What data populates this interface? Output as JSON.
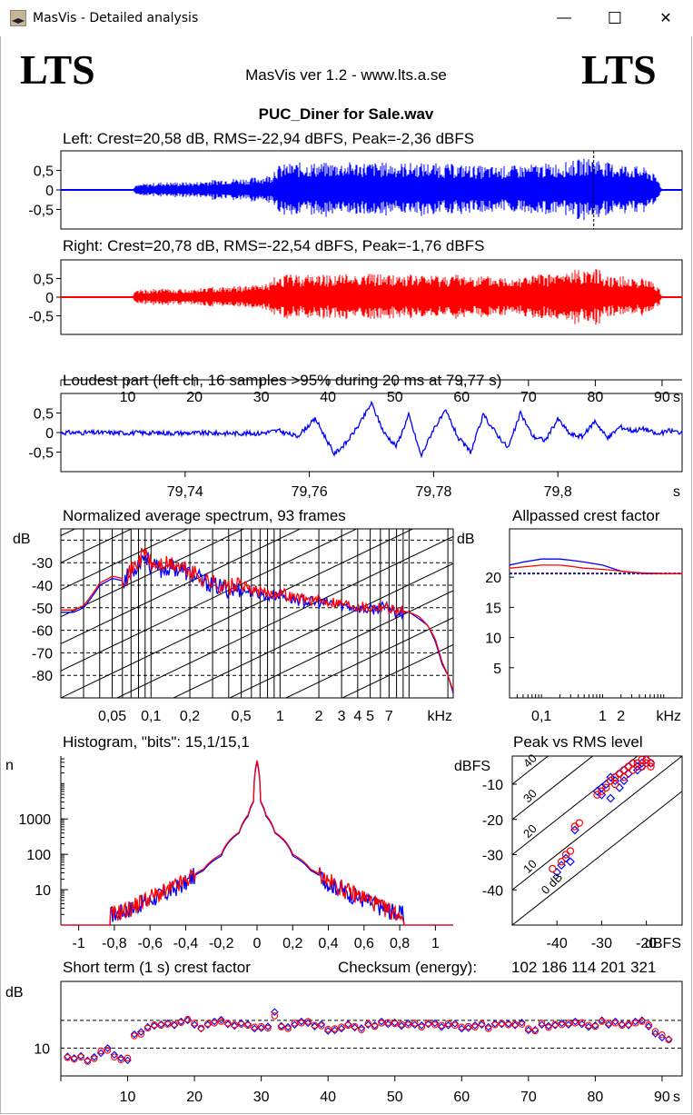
{
  "window": {
    "title": "MasVis - Detailed analysis",
    "minimize": "—",
    "maximize": "☐",
    "close": "✕"
  },
  "header": {
    "logo_left": "LTS",
    "logo_right": "LTS",
    "version": "MasVis ver 1.2 - www.lts.a.se",
    "filename": "PUC_Diner for Sale.wav"
  },
  "colors": {
    "left": "#0000ff",
    "right": "#ff0000",
    "grid": "#000000"
  },
  "chart_data": [
    {
      "id": "left",
      "type": "line",
      "title": "Left: Crest=20,58 dB, RMS=-22,94 dBFS, Peak=-2,36 dBFS",
      "xlim": [
        0,
        93
      ],
      "ylim": [
        -1,
        1
      ],
      "ytick_labels": [
        "0,5",
        "0",
        "-0,5"
      ],
      "yticks": [
        0.5,
        0,
        -0.5
      ],
      "marker_x": 79.77,
      "envelope_x": [
        0,
        10.8,
        11,
        12,
        15,
        18,
        20,
        22,
        25,
        28,
        30,
        31.5,
        32,
        33,
        35,
        40,
        45,
        50,
        55,
        60,
        65,
        70,
        75,
        78,
        80,
        82,
        85,
        88,
        89.5,
        90,
        93
      ],
      "envelope_y": [
        0.01,
        0.01,
        0.1,
        0.15,
        0.2,
        0.2,
        0.2,
        0.25,
        0.3,
        0.3,
        0.35,
        0.4,
        0.6,
        0.65,
        0.7,
        0.7,
        0.72,
        0.7,
        0.7,
        0.65,
        0.6,
        0.65,
        0.7,
        0.8,
        0.85,
        0.7,
        0.65,
        0.55,
        0.25,
        0.01,
        0.01
      ]
    },
    {
      "id": "right",
      "type": "line",
      "title": "Right: Crest=20,78 dB, RMS=-22,54 dBFS, Peak=-1,76 dBFS",
      "xlim": [
        0,
        93
      ],
      "ylim": [
        -1,
        1
      ],
      "ytick_labels": [
        "0,5",
        "0",
        "-0,5"
      ],
      "yticks": [
        0.5,
        0,
        -0.5
      ],
      "xticks": [
        10,
        20,
        30,
        40,
        50,
        60,
        70,
        80,
        90
      ],
      "xtick_labels": [
        "10",
        "20",
        "30",
        "40",
        "50",
        "60",
        "70",
        "80",
        "90"
      ],
      "xunit": "s",
      "envelope_x": [
        0,
        10.8,
        11,
        12,
        15,
        18,
        20,
        22,
        25,
        28,
        30,
        31.5,
        32,
        33,
        35,
        40,
        45,
        50,
        55,
        60,
        65,
        70,
        75,
        78,
        80,
        82,
        85,
        88,
        89.5,
        90,
        93
      ],
      "envelope_y": [
        0.01,
        0.01,
        0.15,
        0.2,
        0.22,
        0.22,
        0.22,
        0.27,
        0.3,
        0.3,
        0.35,
        0.4,
        0.55,
        0.6,
        0.62,
        0.62,
        0.65,
        0.62,
        0.6,
        0.62,
        0.55,
        0.6,
        0.65,
        0.78,
        0.8,
        0.6,
        0.55,
        0.5,
        0.3,
        0.01,
        0.01
      ]
    },
    {
      "id": "loudest",
      "type": "line",
      "title": "Loudest part (left  ch, 16 samples >95% during 20 ms at 79,77 s)",
      "xlim": [
        79.72,
        79.82
      ],
      "ylim": [
        -1,
        1
      ],
      "yticks": [
        0.5,
        0,
        -0.5
      ],
      "ytick_labels": [
        "0,5",
        "0",
        "-0,5"
      ],
      "xticks": [
        79.74,
        79.76,
        79.78,
        79.8
      ],
      "xtick_labels": [
        "79,74",
        "79,76",
        "79,78",
        "79,8"
      ],
      "xunit": "s",
      "x": [
        79.72,
        79.752,
        79.755,
        79.758,
        79.761,
        79.764,
        79.766,
        79.768,
        79.77,
        79.772,
        79.774,
        79.776,
        79.778,
        79.78,
        79.782,
        79.784,
        79.786,
        79.788,
        79.79,
        79.792,
        79.794,
        79.796,
        79.798,
        79.8,
        79.802,
        79.804,
        79.806,
        79.808,
        79.81,
        79.812,
        79.814,
        79.816,
        79.818,
        79.82
      ],
      "y": [
        0.0,
        -0.02,
        0.05,
        -0.1,
        0.35,
        -0.55,
        -0.25,
        0.2,
        0.75,
        0.0,
        -0.35,
        0.45,
        -0.6,
        0.1,
        0.55,
        -0.15,
        -0.5,
        0.45,
        0.0,
        -0.4,
        0.5,
        -0.1,
        -0.2,
        0.35,
        -0.05,
        -0.1,
        0.3,
        -0.15,
        0.15,
        0.05,
        0.1,
        -0.05,
        0.05,
        0.0
      ]
    },
    {
      "id": "spectrum",
      "type": "line",
      "title": "Normalized average spectrum, 93 frames",
      "ylabel": "dB",
      "yticks": [
        -30,
        -40,
        -50,
        -60,
        -70,
        -80
      ],
      "ytick_labels": [
        "-30",
        "-40",
        "-50",
        "-60",
        "-70",
        "-80"
      ],
      "ylim": [
        -90,
        -15
      ],
      "xscale": "log",
      "xlim": [
        0.02,
        22
      ],
      "xticks": [
        0.05,
        0.1,
        0.2,
        0.5,
        1,
        2,
        3,
        4,
        5,
        7
      ],
      "xtick_labels": [
        "0,05",
        "0,1",
        "0,2",
        "0,5",
        "1",
        "2",
        "3",
        "4",
        "5",
        "7"
      ],
      "xunit": "kHz",
      "x": [
        0.02,
        0.025,
        0.03,
        0.035,
        0.04,
        0.05,
        0.06,
        0.07,
        0.08,
        0.09,
        0.1,
        0.12,
        0.15,
        0.2,
        0.25,
        0.3,
        0.4,
        0.5,
        0.6,
        0.8,
        1,
        1.2,
        1.5,
        2,
        2.5,
        3,
        4,
        5,
        6,
        7,
        8,
        10,
        12,
        14,
        16,
        18,
        20,
        22
      ],
      "left": [
        -52,
        -52,
        -50,
        -45,
        -40,
        -37,
        -38,
        -35,
        -30,
        -26,
        -32,
        -33,
        -32,
        -35,
        -38,
        -40,
        -42,
        -42,
        -43,
        -45,
        -44,
        -46,
        -47,
        -48,
        -48,
        -49,
        -50,
        -51,
        -50,
        -50,
        -52,
        -52,
        -55,
        -58,
        -65,
        -75,
        -80,
        -88
      ],
      "right": [
        -51,
        -51,
        -49,
        -44,
        -39,
        -36,
        -37,
        -34,
        -29,
        -25,
        -31,
        -31,
        -31,
        -34,
        -37,
        -39,
        -41,
        -40,
        -42,
        -44,
        -43,
        -45,
        -46,
        -47,
        -47,
        -48,
        -49,
        -50,
        -49,
        -50,
        -51,
        -52,
        -54,
        -58,
        -64,
        -74,
        -80,
        -87
      ]
    },
    {
      "id": "allpass",
      "type": "line",
      "title": "Allpassed crest factor",
      "ylabel": "dB",
      "yticks": [
        20,
        15,
        10,
        5
      ],
      "ytick_labels": [
        "20",
        "15",
        "10",
        "5"
      ],
      "ylim": [
        0,
        28
      ],
      "xscale": "log",
      "xlim": [
        0.03,
        20
      ],
      "xticks": [
        0.1,
        1,
        2
      ],
      "xtick_labels": [
        "0,1",
        "1",
        "2"
      ],
      "xunit": "kHz",
      "x": [
        0.03,
        0.05,
        0.1,
        0.2,
        0.3,
        0.5,
        1,
        2,
        3,
        5,
        10,
        20
      ],
      "left": [
        22,
        22.5,
        23,
        23,
        22.8,
        22.5,
        22,
        21,
        20.8,
        20.6,
        20.6,
        20.6
      ],
      "right": [
        21.5,
        21.7,
        22,
        22,
        21.8,
        21.5,
        21.3,
        21,
        20.8,
        20.7,
        20.6,
        20.6
      ],
      "reference": 20.6
    },
    {
      "id": "histogram",
      "type": "line",
      "title": "Histogram, \"bits\": 15,1/15,1",
      "ylabel": "n",
      "yscale": "log",
      "ylim": [
        1,
        60000
      ],
      "yticks": [
        1000,
        100,
        10
      ],
      "ytick_labels": [
        "1000",
        "100",
        "10"
      ],
      "xlim": [
        -1.1,
        1.1
      ],
      "xticks": [
        -1,
        -0.8,
        -0.6,
        -0.4,
        -0.2,
        0,
        0.2,
        0.4,
        0.6,
        0.8,
        1
      ],
      "xtick_labels": [
        "-1",
        "-0,8",
        "-0,6",
        "-0,4",
        "-0,2",
        "0",
        "0,2",
        "0,4",
        "0,6",
        "0,8",
        "1"
      ],
      "x": [
        -0.8,
        -0.7,
        -0.6,
        -0.5,
        -0.4,
        -0.3,
        -0.2,
        -0.1,
        -0.05,
        -0.02,
        0,
        0.02,
        0.05,
        0.1,
        0.2,
        0.3,
        0.4,
        0.5,
        0.6,
        0.7,
        0.8
      ],
      "left": [
        2,
        3,
        5,
        8,
        15,
        35,
        90,
        400,
        1200,
        3000,
        40000,
        3000,
        1200,
        400,
        90,
        35,
        15,
        8,
        5,
        3,
        2
      ],
      "right": [
        2,
        3,
        6,
        9,
        17,
        38,
        100,
        420,
        1300,
        3200,
        45000,
        3200,
        1300,
        420,
        100,
        38,
        17,
        9,
        6,
        3,
        2
      ]
    },
    {
      "id": "peakrms",
      "type": "scatter",
      "title": "Peak vs RMS level",
      "ylabel": "dBFS",
      "xunit": "dBFS",
      "xlim": [
        -50,
        -12
      ],
      "ylim": [
        -50,
        -2
      ],
      "xticks": [
        -40,
        -30,
        -20
      ],
      "xtick_labels": [
        "-40",
        "-30",
        "-20"
      ],
      "yticks": [
        -10,
        -20,
        -30,
        -40
      ],
      "ytick_labels": [
        "-10",
        "-20",
        "-30",
        "-40"
      ],
      "diagonal_labels": [
        "40",
        "30",
        "20",
        "10",
        "0 dB"
      ],
      "diagonal_offsets": [
        40,
        30,
        20,
        10,
        0
      ],
      "left_rms": [
        -40,
        -39,
        -38,
        -37,
        -36,
        -30,
        -29,
        -28,
        -27,
        -26,
        -25,
        -24,
        -23,
        -22,
        -21,
        -20,
        -19,
        -30,
        -31,
        -28,
        -26,
        -25,
        -24,
        -22,
        -21
      ],
      "left_peak": [
        -35,
        -33,
        -31,
        -32,
        -23,
        -11,
        -10,
        -8,
        -9,
        -7,
        -6,
        -5,
        -4,
        -5,
        -4,
        -3,
        -4,
        -13,
        -12,
        -14,
        -11,
        -9,
        -7,
        -6,
        -5
      ],
      "right_rms": [
        -41,
        -39,
        -38,
        -37,
        -36,
        -35,
        -30,
        -29,
        -28,
        -27,
        -26,
        -25,
        -24,
        -23,
        -22,
        -21,
        -20,
        -19,
        -31,
        -27,
        -25,
        -23,
        -21,
        -20,
        -19
      ],
      "right_peak": [
        -34,
        -32,
        -30,
        -29,
        -22,
        -21,
        -12,
        -11,
        -9,
        -8,
        -7,
        -6,
        -5,
        -4,
        -4,
        -3,
        -3,
        -4,
        -13,
        -10,
        -8,
        -6,
        -5,
        -4,
        -5
      ]
    },
    {
      "id": "shortcrest",
      "type": "scatter",
      "title": "Short term (1 s) crest factor",
      "checksum_label": "Checksum (energy):",
      "checksum": "102 186 114 201 321",
      "ylabel": "dB",
      "ylim": [
        5,
        22
      ],
      "yticks": [
        10
      ],
      "ytick_labels": [
        "10"
      ],
      "dashed": [
        10,
        15
      ],
      "xlim": [
        0,
        93
      ],
      "xticks": [
        10,
        20,
        30,
        40,
        50,
        60,
        70,
        80,
        90
      ],
      "xtick_labels": [
        "10",
        "20",
        "30",
        "40",
        "50",
        "60",
        "70",
        "80",
        "90"
      ],
      "xunit": "s",
      "left_seq": [
        8.5,
        8.2,
        8.6,
        7.8,
        8.4,
        9.1,
        10,
        8.8,
        8.2,
        7.8,
        12.5,
        12.9,
        13.8,
        14,
        14.3,
        14.5,
        14.1,
        14.8,
        15,
        14.2,
        13.5,
        14.2,
        14.8,
        15.1,
        14.3,
        14,
        14.5,
        14.3,
        13.5,
        13.6,
        13.9,
        16.5,
        14,
        13.8,
        14.2,
        14.8,
        14.5,
        13.9,
        14.3,
        13.1,
        13.2,
        13.5,
        14.3,
        13.7,
        13.6,
        14.2,
        14.1,
        14.8,
        14.3,
        14.6,
        14,
        14.5,
        14.2,
        14.1,
        14.3,
        14.5,
        13.8,
        14.1,
        14.4,
        13.5,
        13.6,
        14.1,
        14.2,
        13.8,
        14.4,
        14.3,
        14.4,
        14.1,
        14.6,
        13.2,
        13.3,
        14.2,
        14,
        14.1,
        14.5,
        14.2,
        14.8,
        14.3,
        13.8,
        14.1,
        15,
        14.2,
        14.8,
        14.3,
        14.1,
        14.8,
        15,
        13.9,
        12.6,
        11.9,
        11.6
      ],
      "right_seq": [
        8.3,
        8,
        8.4,
        7.6,
        8.1,
        9.5,
        9.6,
        8.4,
        7.9,
        8.2,
        12.2,
        12.5,
        13.6,
        14.2,
        14.1,
        14.3,
        14.3,
        14.6,
        15.2,
        14.5,
        13.6,
        14.4,
        14.5,
        14.8,
        14.5,
        14.2,
        14.3,
        14.1,
        13.8,
        13.9,
        13.6,
        15.8,
        13.8,
        13.5,
        14.5,
        14.5,
        14.8,
        14.1,
        14,
        13.4,
        13.5,
        13.8,
        14.1,
        13.9,
        13.3,
        14.4,
        13.9,
        14.5,
        14.6,
        14.4,
        14.3,
        14.2,
        14.5,
        13.8,
        14.5,
        14.2,
        14.1,
        14.4,
        14.1,
        13.8,
        13.9,
        13.8,
        14.4,
        13.5,
        14.2,
        14.5,
        14.2,
        14.3,
        14.3,
        13.5,
        13.1,
        14.5,
        13.7,
        14.3,
        14.2,
        14.5,
        14.5,
        14.6,
        14.1,
        13.9,
        14.8,
        14.5,
        14.5,
        14.1,
        14.3,
        14.5,
        14.8,
        14.2,
        13,
        12.4,
        11.5
      ]
    }
  ]
}
